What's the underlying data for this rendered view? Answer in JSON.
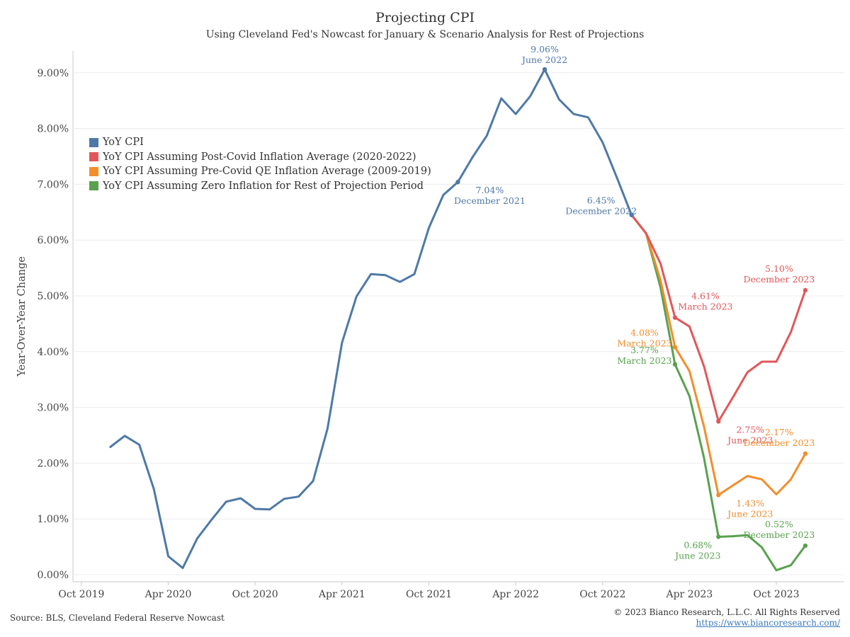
{
  "header": {
    "title": "Projecting CPI",
    "subtitle": "Using Cleveland Fed's Nowcast for January & Scenario Analysis for Rest of Projections"
  },
  "footer": {
    "source": "Source: BLS, Cleveland Federal Reserve Nowcast",
    "copyright": "© 2023 Bianco Research, L.L.C. All Rights Reserved",
    "url": "https://www.biancoresearch.com/"
  },
  "chart_data": {
    "type": "line",
    "ylabel": "Year-Over-Year Change",
    "xlabel": "",
    "ylim": [
      0,
      9.5
    ],
    "y_ticks": [
      "0.00%",
      "1.00%",
      "2.00%",
      "3.00%",
      "4.00%",
      "5.00%",
      "6.00%",
      "7.00%",
      "8.00%",
      "9.00%"
    ],
    "x_ticks": [
      {
        "label": "Oct 2019",
        "x": "2019-10"
      },
      {
        "label": "Apr 2020",
        "x": "2020-04"
      },
      {
        "label": "Oct 2020",
        "x": "2020-10"
      },
      {
        "label": "Apr 2021",
        "x": "2021-04"
      },
      {
        "label": "Oct 2021",
        "x": "2021-10"
      },
      {
        "label": "Apr 2022",
        "x": "2022-04"
      },
      {
        "label": "Oct 2022",
        "x": "2022-10"
      },
      {
        "label": "Apr 2023",
        "x": "2023-04"
      },
      {
        "label": "Oct 2023",
        "x": "2023-10"
      }
    ],
    "grid": true,
    "legend_position": "top-left",
    "series": [
      {
        "name": "YoY CPI",
        "color": "#4e79a7",
        "x": [
          "2019-12",
          "2020-01",
          "2020-02",
          "2020-03",
          "2020-04",
          "2020-05",
          "2020-06",
          "2020-07",
          "2020-08",
          "2020-09",
          "2020-10",
          "2020-11",
          "2020-12",
          "2021-01",
          "2021-02",
          "2021-03",
          "2021-04",
          "2021-05",
          "2021-06",
          "2021-07",
          "2021-08",
          "2021-09",
          "2021-10",
          "2021-11",
          "2021-12",
          "2022-01",
          "2022-02",
          "2022-03",
          "2022-04",
          "2022-05",
          "2022-06",
          "2022-07",
          "2022-08",
          "2022-09",
          "2022-10",
          "2022-11",
          "2022-12"
        ],
        "y": [
          2.29,
          2.49,
          2.33,
          1.54,
          0.33,
          0.12,
          0.65,
          0.99,
          1.31,
          1.37,
          1.18,
          1.17,
          1.36,
          1.4,
          1.68,
          2.62,
          4.16,
          4.99,
          5.39,
          5.37,
          5.25,
          5.39,
          6.22,
          6.81,
          7.04,
          7.48,
          7.87,
          8.54,
          8.26,
          8.58,
          9.06,
          8.52,
          8.26,
          8.2,
          7.75,
          7.11,
          6.45
        ]
      },
      {
        "name": "YoY CPI Assuming Post-Covid Inflation Average (2020-2022)",
        "color": "#e15759",
        "x": [
          "2022-12",
          "2023-01",
          "2023-02",
          "2023-03",
          "2023-04",
          "2023-05",
          "2023-06",
          "2023-07",
          "2023-08",
          "2023-09",
          "2023-10",
          "2023-11",
          "2023-12"
        ],
        "y": [
          6.45,
          6.12,
          5.58,
          4.61,
          4.45,
          3.74,
          2.75,
          3.18,
          3.63,
          3.82,
          3.82,
          4.35,
          5.1
        ]
      },
      {
        "name": "YoY CPI Assuming Pre-Covid QE Inflation Average (2009-2019)",
        "color": "#f28e2b",
        "x": [
          "2022-12",
          "2023-01",
          "2023-02",
          "2023-03",
          "2023-04",
          "2023-05",
          "2023-06",
          "2023-07",
          "2023-08",
          "2023-09",
          "2023-10",
          "2023-11",
          "2023-12"
        ],
        "y": [
          6.45,
          6.12,
          5.28,
          4.08,
          3.65,
          2.66,
          1.43,
          1.6,
          1.77,
          1.71,
          1.44,
          1.71,
          2.17
        ]
      },
      {
        "name": "YoY CPI Assuming Zero Inflation for Rest of Projection Period",
        "color": "#59a14f",
        "x": [
          "2022-12",
          "2023-01",
          "2023-02",
          "2023-03",
          "2023-04",
          "2023-05",
          "2023-06",
          "2023-07",
          "2023-08",
          "2023-09",
          "2023-10",
          "2023-11",
          "2023-12"
        ],
        "y": [
          6.45,
          6.12,
          5.15,
          3.77,
          3.2,
          2.1,
          0.68,
          0.69,
          0.71,
          0.49,
          0.08,
          0.17,
          0.52
        ]
      }
    ],
    "annotations": [
      {
        "series": 0,
        "x": "2022-06",
        "y": 9.06,
        "value": "9.06%",
        "label": "June 2022",
        "place": "above"
      },
      {
        "series": 0,
        "x": "2021-12",
        "y": 7.04,
        "value": "7.04%",
        "label": "December 2021",
        "place": "below-right"
      },
      {
        "series": 0,
        "x": "2022-12",
        "y": 6.45,
        "value": "6.45%",
        "label": "December 2022",
        "place": "left"
      },
      {
        "series": 1,
        "x": "2023-03",
        "y": 4.61,
        "value": "4.61%",
        "label": "March 2023",
        "place": "above-right"
      },
      {
        "series": 1,
        "x": "2023-06",
        "y": 2.75,
        "value": "2.75%",
        "label": "June 2023",
        "place": "below-right"
      },
      {
        "series": 1,
        "x": "2023-12",
        "y": 5.1,
        "value": "5.10%",
        "label": "December 2023",
        "place": "above-left"
      },
      {
        "series": 2,
        "x": "2023-03",
        "y": 4.08,
        "value": "4.08%",
        "label": "March 2023",
        "place": "left"
      },
      {
        "series": 2,
        "x": "2023-06",
        "y": 1.43,
        "value": "1.43%",
        "label": "June 2023",
        "place": "below-right"
      },
      {
        "series": 2,
        "x": "2023-12",
        "y": 2.17,
        "value": "2.17%",
        "label": "December 2023",
        "place": "above-left"
      },
      {
        "series": 3,
        "x": "2023-03",
        "y": 3.77,
        "value": "3.77%",
        "label": "March 2023",
        "place": "left"
      },
      {
        "series": 3,
        "x": "2023-06",
        "y": 0.68,
        "value": "0.68%",
        "label": "June 2023",
        "place": "below-left"
      },
      {
        "series": 3,
        "x": "2023-12",
        "y": 0.52,
        "value": "0.52%",
        "label": "December 2023",
        "place": "above-left"
      }
    ]
  }
}
